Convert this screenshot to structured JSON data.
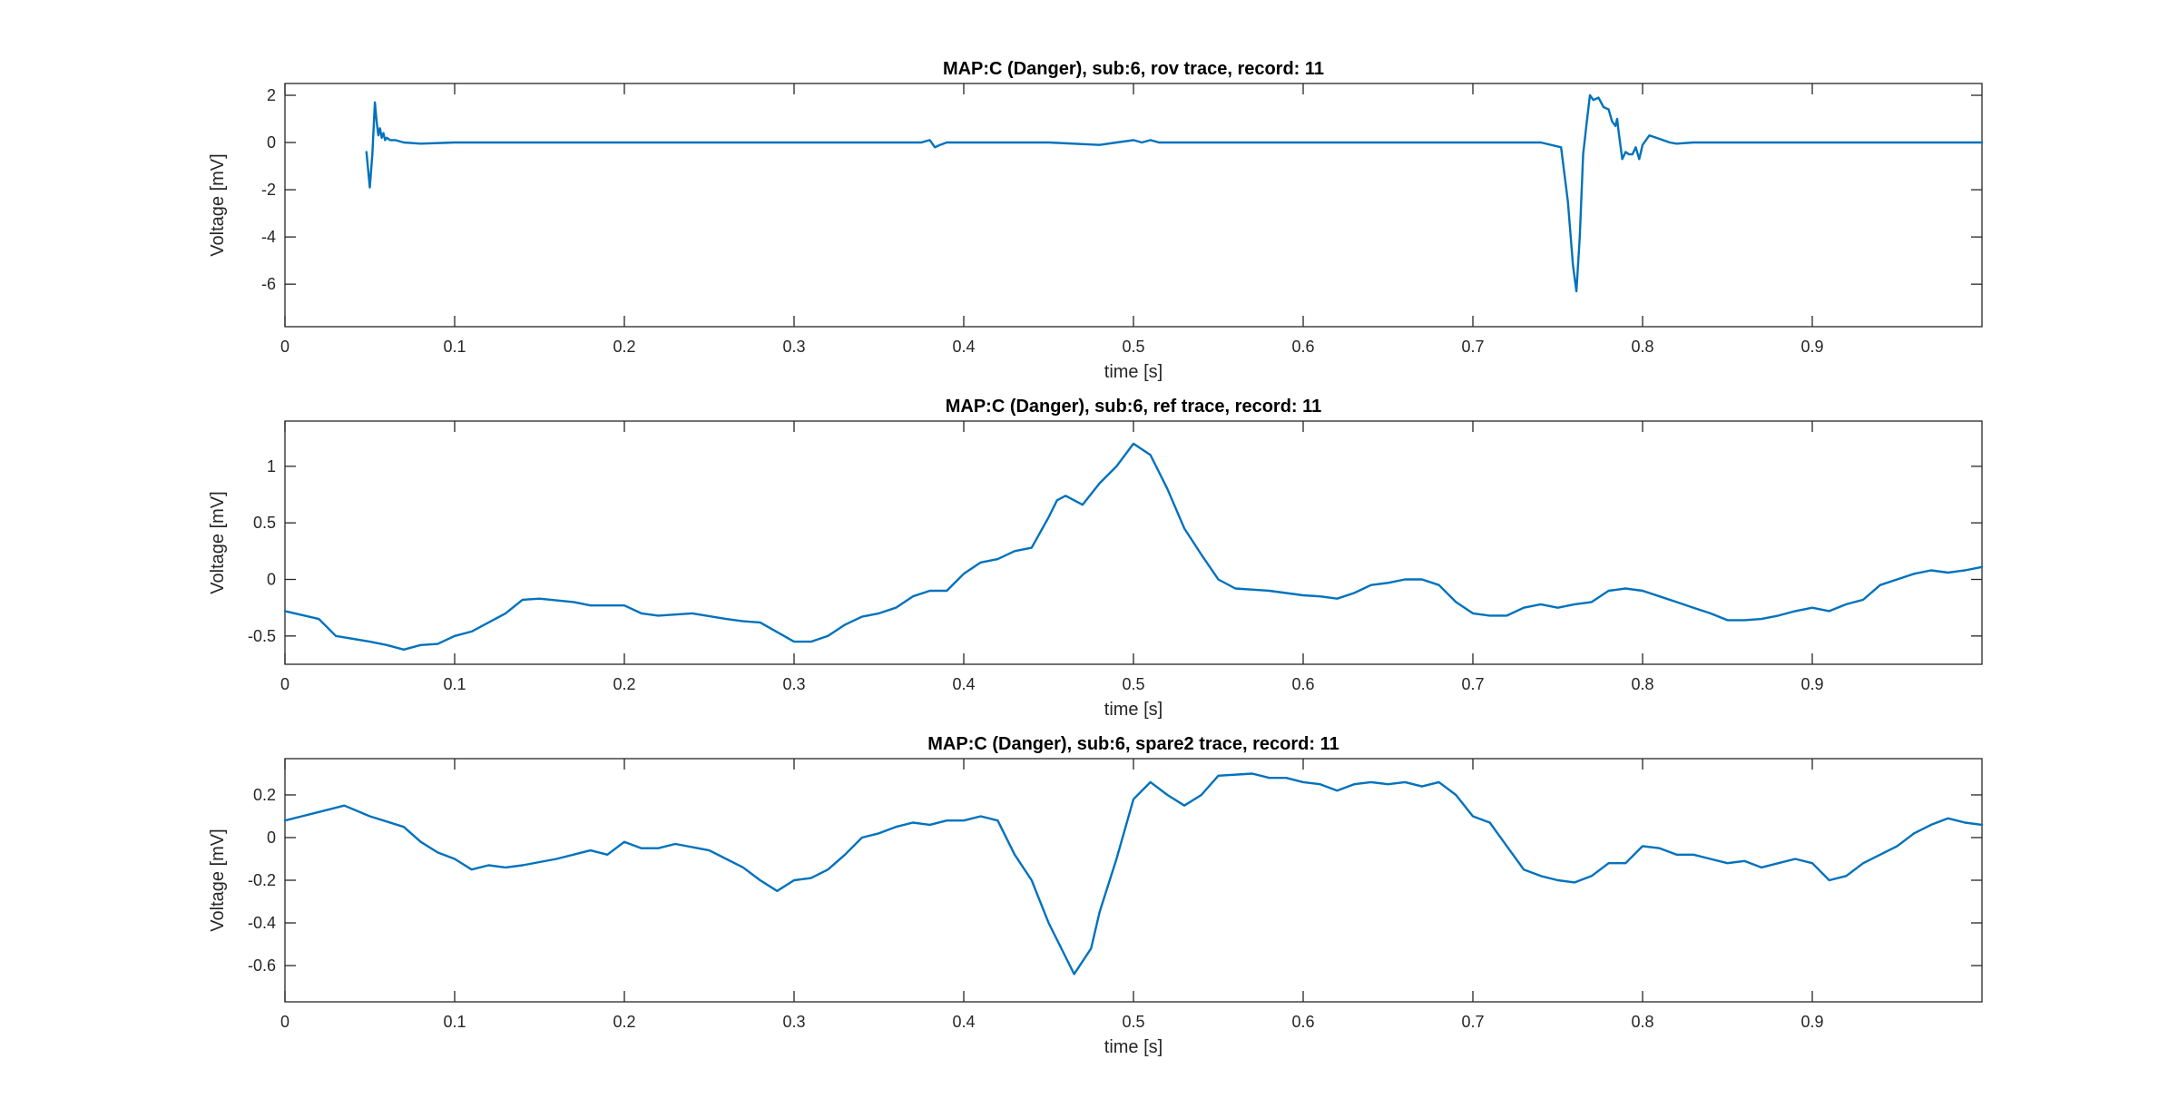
{
  "figure": {
    "line_color": "#0072BD"
  },
  "chart_data": [
    {
      "type": "line",
      "title": "MAP:C (Danger), sub:6, rov trace, record: 11",
      "xlabel": "time [s]",
      "ylabel": "Voltage [mV]",
      "xlim": [
        0,
        1
      ],
      "ylim": [
        -7.8,
        2.5
      ],
      "xticks": [
        0,
        0.1,
        0.2,
        0.3,
        0.4,
        0.5,
        0.6,
        0.7,
        0.8,
        0.9
      ],
      "xtick_labels": [
        "0",
        "0.1",
        "0.2",
        "0.3",
        "0.4",
        "0.5",
        "0.6",
        "0.7",
        "0.8",
        "0.9"
      ],
      "yticks": [
        -6,
        -4,
        -2,
        0,
        2
      ],
      "ytick_labels": [
        "-6",
        "-4",
        "-2",
        "0",
        "2"
      ],
      "grid": false,
      "series": [
        {
          "x": [
            0.048,
            0.05,
            0.0515,
            0.053,
            0.054,
            0.055,
            0.056,
            0.057,
            0.058,
            0.059,
            0.06,
            0.062,
            0.065,
            0.07,
            0.08,
            0.1,
            0.15,
            0.2,
            0.25,
            0.3,
            0.35,
            0.375,
            0.38,
            0.383,
            0.386,
            0.39,
            0.4,
            0.45,
            0.48,
            0.49,
            0.5,
            0.505,
            0.51,
            0.515,
            0.52,
            0.53,
            0.55,
            0.6,
            0.65,
            0.7,
            0.74,
            0.752,
            0.756,
            0.759,
            0.761,
            0.763,
            0.765,
            0.767,
            0.769,
            0.771,
            0.774,
            0.777,
            0.78,
            0.782,
            0.784,
            0.785,
            0.786,
            0.788,
            0.79,
            0.792,
            0.794,
            0.796,
            0.798,
            0.8,
            0.804,
            0.808,
            0.812,
            0.816,
            0.82,
            0.83,
            0.85,
            0.9,
            0.95,
            1.0
          ],
          "y": [
            -0.4,
            -1.9,
            -0.5,
            1.7,
            0.9,
            0.3,
            0.6,
            0.2,
            0.4,
            0.1,
            0.2,
            0.1,
            0.1,
            0.0,
            -0.05,
            0.0,
            0.0,
            0.0,
            0.0,
            0.0,
            0.0,
            0.0,
            0.1,
            -0.2,
            -0.1,
            0.0,
            0.0,
            0.0,
            -0.1,
            0.0,
            0.1,
            0.0,
            0.1,
            0.0,
            0.0,
            0.0,
            0.0,
            0.0,
            0.0,
            0.0,
            0.0,
            -0.2,
            -2.5,
            -5.2,
            -6.3,
            -4.0,
            -0.5,
            0.8,
            2.0,
            1.8,
            1.9,
            1.5,
            1.4,
            0.9,
            0.7,
            1.0,
            0.4,
            -0.7,
            -0.4,
            -0.5,
            -0.5,
            -0.2,
            -0.7,
            -0.1,
            0.3,
            0.2,
            0.1,
            0.0,
            -0.05,
            0.0,
            0.0,
            0.0,
            0.0,
            0.0
          ]
        }
      ]
    },
    {
      "type": "line",
      "title": "MAP:C (Danger), sub:6, ref trace, record: 11",
      "xlabel": "time [s]",
      "ylabel": "Voltage [mV]",
      "xlim": [
        0,
        1
      ],
      "ylim": [
        -0.75,
        1.4
      ],
      "xticks": [
        0,
        0.1,
        0.2,
        0.3,
        0.4,
        0.5,
        0.6,
        0.7,
        0.8,
        0.9
      ],
      "xtick_labels": [
        "0",
        "0.1",
        "0.2",
        "0.3",
        "0.4",
        "0.5",
        "0.6",
        "0.7",
        "0.8",
        "0.9"
      ],
      "yticks": [
        -0.5,
        0,
        0.5,
        1
      ],
      "ytick_labels": [
        "-0.5",
        "0",
        "0.5",
        "1"
      ],
      "grid": false,
      "series": [
        {
          "x": [
            0.0,
            0.02,
            0.03,
            0.05,
            0.06,
            0.07,
            0.08,
            0.09,
            0.1,
            0.11,
            0.12,
            0.13,
            0.14,
            0.15,
            0.17,
            0.18,
            0.2,
            0.21,
            0.22,
            0.24,
            0.26,
            0.27,
            0.28,
            0.3,
            0.31,
            0.32,
            0.33,
            0.34,
            0.35,
            0.36,
            0.37,
            0.38,
            0.39,
            0.4,
            0.41,
            0.42,
            0.43,
            0.44,
            0.45,
            0.455,
            0.46,
            0.465,
            0.47,
            0.48,
            0.49,
            0.5,
            0.51,
            0.52,
            0.53,
            0.54,
            0.55,
            0.56,
            0.58,
            0.59,
            0.6,
            0.61,
            0.62,
            0.63,
            0.64,
            0.65,
            0.66,
            0.67,
            0.68,
            0.69,
            0.7,
            0.71,
            0.72,
            0.73,
            0.74,
            0.75,
            0.76,
            0.77,
            0.78,
            0.79,
            0.8,
            0.81,
            0.82,
            0.83,
            0.84,
            0.85,
            0.86,
            0.87,
            0.88,
            0.89,
            0.9,
            0.91,
            0.92,
            0.93,
            0.94,
            0.95,
            0.96,
            0.97,
            0.98,
            0.99,
            1.0
          ],
          "y": [
            -0.28,
            -0.35,
            -0.5,
            -0.55,
            -0.58,
            -0.62,
            -0.58,
            -0.57,
            -0.5,
            -0.46,
            -0.38,
            -0.3,
            -0.18,
            -0.17,
            -0.2,
            -0.23,
            -0.23,
            -0.3,
            -0.32,
            -0.3,
            -0.35,
            -0.37,
            -0.38,
            -0.55,
            -0.55,
            -0.5,
            -0.4,
            -0.33,
            -0.3,
            -0.25,
            -0.15,
            -0.1,
            -0.1,
            0.05,
            0.15,
            0.18,
            0.25,
            0.28,
            0.55,
            0.7,
            0.74,
            0.7,
            0.66,
            0.85,
            1.0,
            1.2,
            1.1,
            0.8,
            0.45,
            0.22,
            0.0,
            -0.08,
            -0.1,
            -0.12,
            -0.14,
            -0.15,
            -0.17,
            -0.12,
            -0.05,
            -0.03,
            0.0,
            0.0,
            -0.05,
            -0.2,
            -0.3,
            -0.32,
            -0.32,
            -0.25,
            -0.22,
            -0.25,
            -0.22,
            -0.2,
            -0.1,
            -0.08,
            -0.1,
            -0.15,
            -0.2,
            -0.25,
            -0.3,
            -0.36,
            -0.36,
            -0.35,
            -0.32,
            -0.28,
            -0.25,
            -0.28,
            -0.22,
            -0.18,
            -0.05,
            0.0,
            0.05,
            0.08,
            0.06,
            0.08,
            0.11
          ]
        }
      ]
    },
    {
      "type": "line",
      "title": "MAP:C (Danger), sub:6, spare2 trace, record: 11",
      "xlabel": "time [s]",
      "ylabel": "Voltage [mV]",
      "xlim": [
        0,
        1
      ],
      "ylim": [
        -0.77,
        0.37
      ],
      "xticks": [
        0,
        0.1,
        0.2,
        0.3,
        0.4,
        0.5,
        0.6,
        0.7,
        0.8,
        0.9
      ],
      "xtick_labels": [
        "0",
        "0.1",
        "0.2",
        "0.3",
        "0.4",
        "0.5",
        "0.6",
        "0.7",
        "0.8",
        "0.9"
      ],
      "yticks": [
        -0.6,
        -0.4,
        -0.2,
        0,
        0.2
      ],
      "ytick_labels": [
        "-0.6",
        "-0.4",
        "-0.2",
        "0",
        "0.2"
      ],
      "grid": false,
      "series": [
        {
          "x": [
            0.0,
            0.01,
            0.02,
            0.035,
            0.05,
            0.07,
            0.08,
            0.09,
            0.1,
            0.11,
            0.12,
            0.13,
            0.14,
            0.16,
            0.18,
            0.19,
            0.2,
            0.21,
            0.22,
            0.23,
            0.25,
            0.26,
            0.27,
            0.28,
            0.29,
            0.3,
            0.31,
            0.32,
            0.33,
            0.34,
            0.35,
            0.36,
            0.37,
            0.38,
            0.39,
            0.4,
            0.41,
            0.42,
            0.43,
            0.44,
            0.45,
            0.465,
            0.475,
            0.48,
            0.49,
            0.5,
            0.51,
            0.52,
            0.53,
            0.54,
            0.55,
            0.57,
            0.58,
            0.59,
            0.6,
            0.61,
            0.62,
            0.63,
            0.64,
            0.65,
            0.66,
            0.67,
            0.68,
            0.69,
            0.7,
            0.71,
            0.72,
            0.73,
            0.74,
            0.75,
            0.76,
            0.77,
            0.78,
            0.79,
            0.8,
            0.81,
            0.82,
            0.83,
            0.84,
            0.85,
            0.86,
            0.87,
            0.88,
            0.89,
            0.9,
            0.91,
            0.92,
            0.93,
            0.94,
            0.95,
            0.96,
            0.97,
            0.98,
            0.99,
            1.0
          ],
          "y": [
            0.08,
            0.1,
            0.12,
            0.15,
            0.1,
            0.05,
            -0.02,
            -0.07,
            -0.1,
            -0.15,
            -0.13,
            -0.14,
            -0.13,
            -0.1,
            -0.06,
            -0.08,
            -0.02,
            -0.05,
            -0.05,
            -0.03,
            -0.06,
            -0.1,
            -0.14,
            -0.2,
            -0.25,
            -0.2,
            -0.19,
            -0.15,
            -0.08,
            0.0,
            0.02,
            0.05,
            0.07,
            0.06,
            0.08,
            0.08,
            0.1,
            0.08,
            -0.08,
            -0.2,
            -0.4,
            -0.64,
            -0.52,
            -0.35,
            -0.1,
            0.18,
            0.26,
            0.2,
            0.15,
            0.2,
            0.29,
            0.3,
            0.28,
            0.28,
            0.26,
            0.25,
            0.22,
            0.25,
            0.26,
            0.25,
            0.26,
            0.24,
            0.26,
            0.2,
            0.1,
            0.07,
            -0.04,
            -0.15,
            -0.18,
            -0.2,
            -0.21,
            -0.18,
            -0.12,
            -0.12,
            -0.04,
            -0.05,
            -0.08,
            -0.08,
            -0.1,
            -0.12,
            -0.11,
            -0.14,
            -0.12,
            -0.1,
            -0.12,
            -0.2,
            -0.18,
            -0.12,
            -0.08,
            -0.04,
            0.02,
            0.06,
            0.09,
            0.07,
            0.06
          ]
        }
      ]
    }
  ]
}
